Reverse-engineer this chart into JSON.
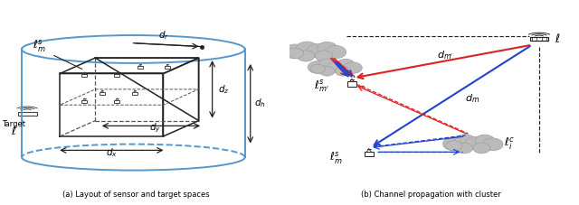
{
  "fig_width": 6.4,
  "fig_height": 2.27,
  "dpi": 100,
  "bg": "#ffffff",
  "caption_a": "(a) Layout of sensor and target spaces",
  "caption_b": "(b) Channel propagation with cluster",
  "cyl_color": "#5599cc",
  "box_color": "#222222",
  "red": "#dd2222",
  "blue": "#2244cc",
  "dark": "#222222",
  "gray": "#888888"
}
